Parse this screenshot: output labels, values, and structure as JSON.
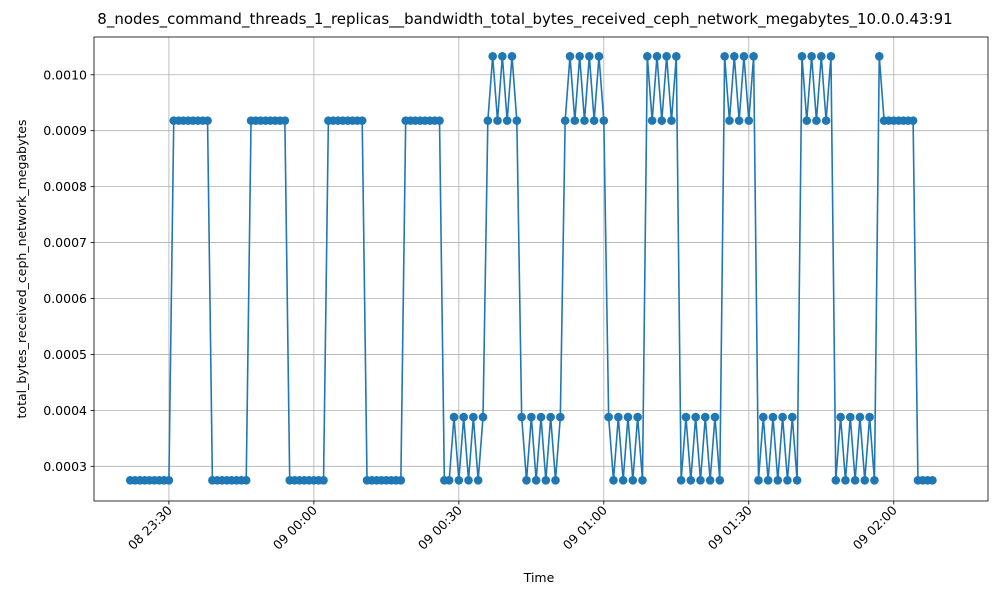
{
  "chart_data": {
    "type": "line",
    "title": "8_nodes_command_threads_1_replicas__bandwidth_total_bytes_received_ceph_network_megabytes_10.0.0.43:91",
    "xlabel": "Time",
    "ylabel": "total_bytes_received_ceph_network_megabytes",
    "grid": true,
    "marker": "circle",
    "color": "#1f77b4",
    "x_start": "08 23:22",
    "x_step_minutes": 1,
    "x_ticks": [
      "08 23:30",
      "09 00:00",
      "09 00:30",
      "09 01:00",
      "09 01:30",
      "09 02:00"
    ],
    "x_tick_minutes": [
      8,
      38,
      68,
      98,
      128,
      158
    ],
    "xlim_minutes": [
      -7.5,
      177.5
    ],
    "yticks": [
      0.0003,
      0.0004,
      0.0005,
      0.0006,
      0.0007,
      0.0008,
      0.0009,
      0.001
    ],
    "y_tick_labels": [
      "0.0003",
      "0.0004",
      "0.0005",
      "0.0006",
      "0.0007",
      "0.0008",
      "0.0009",
      "0.0010"
    ],
    "ylim": [
      0.000238,
      0.0010675
    ],
    "values": [
      0.000275,
      0.000275,
      0.000275,
      0.000275,
      0.000275,
      0.000275,
      0.000275,
      0.000275,
      0.000275,
      0.000918,
      0.000918,
      0.000918,
      0.000918,
      0.000918,
      0.000918,
      0.000918,
      0.000918,
      0.000275,
      0.000275,
      0.000275,
      0.000275,
      0.000275,
      0.000275,
      0.000275,
      0.000275,
      0.000918,
      0.000918,
      0.000918,
      0.000918,
      0.000918,
      0.000918,
      0.000918,
      0.000918,
      0.000275,
      0.000275,
      0.000275,
      0.000275,
      0.000275,
      0.000275,
      0.000275,
      0.000275,
      0.000918,
      0.000918,
      0.000918,
      0.000918,
      0.000918,
      0.000918,
      0.000918,
      0.000918,
      0.000275,
      0.000275,
      0.000275,
      0.000275,
      0.000275,
      0.000275,
      0.000275,
      0.000275,
      0.000918,
      0.000918,
      0.000918,
      0.000918,
      0.000918,
      0.000918,
      0.000918,
      0.000918,
      0.000275,
      0.000275,
      0.000388,
      0.000275,
      0.000388,
      0.000275,
      0.000388,
      0.000275,
      0.000388,
      0.000918,
      0.001033,
      0.000918,
      0.001033,
      0.000918,
      0.001033,
      0.000918,
      0.000388,
      0.000275,
      0.000388,
      0.000275,
      0.000388,
      0.000275,
      0.000388,
      0.000275,
      0.000388,
      0.000918,
      0.001033,
      0.000918,
      0.001033,
      0.000918,
      0.001033,
      0.000918,
      0.001033,
      0.000918,
      0.000388,
      0.000275,
      0.000388,
      0.000275,
      0.000388,
      0.000275,
      0.000388,
      0.000275,
      0.001033,
      0.000918,
      0.001033,
      0.000918,
      0.001033,
      0.000918,
      0.001033,
      0.000275,
      0.000388,
      0.000275,
      0.000388,
      0.000275,
      0.000388,
      0.000275,
      0.000388,
      0.000275,
      0.001033,
      0.000918,
      0.001033,
      0.000918,
      0.001033,
      0.000918,
      0.001033,
      0.000275,
      0.000388,
      0.000275,
      0.000388,
      0.000275,
      0.000388,
      0.000275,
      0.000388,
      0.000275,
      0.001033,
      0.000918,
      0.001033,
      0.000918,
      0.001033,
      0.000918,
      0.001033,
      0.000275,
      0.000388,
      0.000275,
      0.000388,
      0.000275,
      0.000388,
      0.000275,
      0.000388,
      0.000275,
      0.001033,
      0.000918,
      0.000918,
      0.000918,
      0.000918,
      0.000918,
      0.000918,
      0.000918,
      0.000275,
      0.000275,
      0.000275,
      0.000275
    ]
  }
}
